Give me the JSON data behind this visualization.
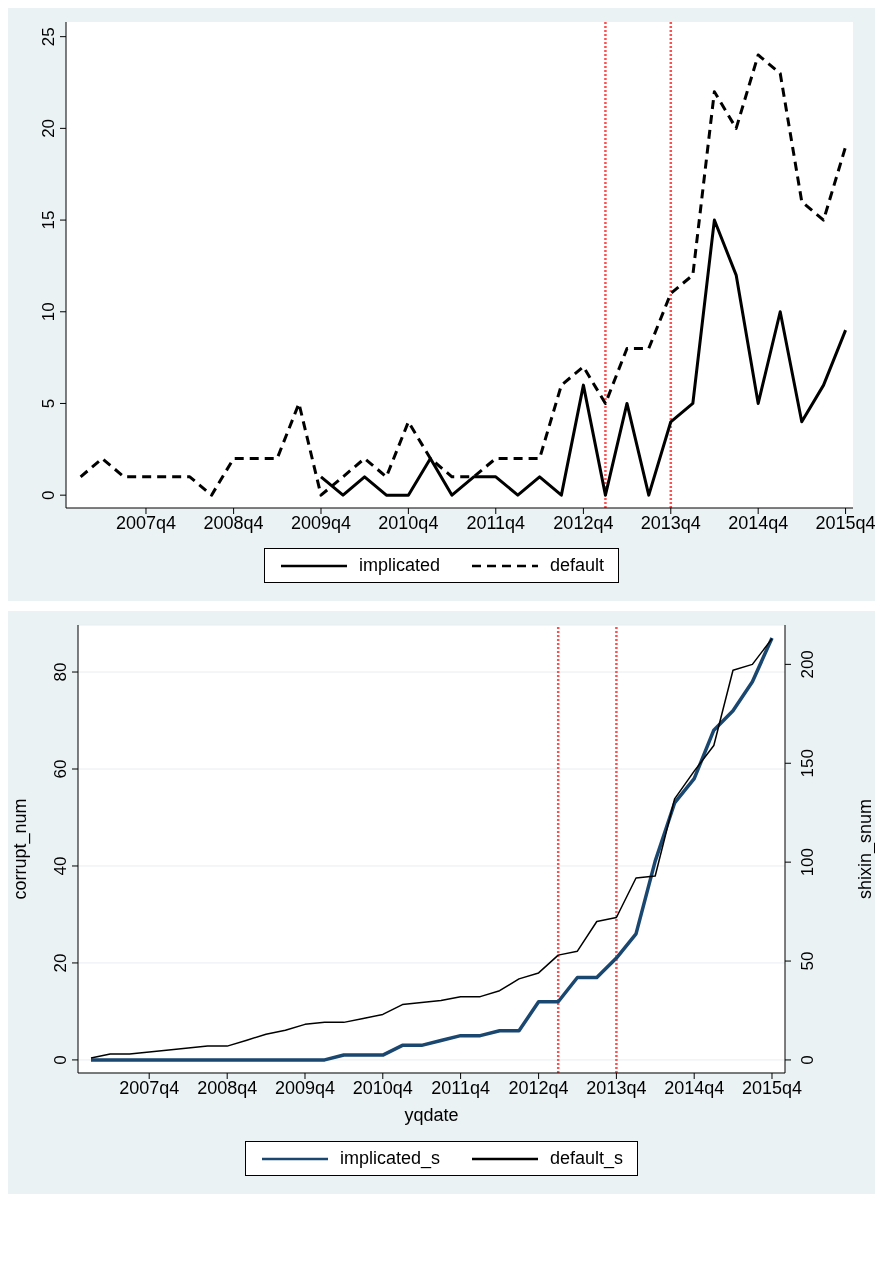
{
  "chart_data": [
    {
      "type": "line",
      "x": [
        "2007-01",
        "2007-04",
        "2007-07",
        "2007-10",
        "2008-01",
        "2008-04",
        "2008-07",
        "2008-10",
        "2009-01",
        "2009-04",
        "2009-07",
        "2009-10",
        "2010-01",
        "2010-04",
        "2010-07",
        "2010-10",
        "2011-01",
        "2011-04",
        "2011-07",
        "2011-10",
        "2012-01",
        "2012-04",
        "2012-07",
        "2012-10",
        "2013-01",
        "2013-04",
        "2013-07",
        "2013-10",
        "2014-01",
        "2014-04",
        "2014-07",
        "2014-10",
        "2015-01",
        "2015-04",
        "2015-07",
        "2015-10"
      ],
      "series": [
        {
          "name": "implicated",
          "color": "#000000",
          "line_style": "solid",
          "values": [
            null,
            null,
            null,
            null,
            null,
            null,
            null,
            null,
            null,
            null,
            null,
            1,
            0,
            1,
            0,
            0,
            2,
            0,
            1,
            1,
            0,
            1,
            0,
            6,
            0,
            5,
            0,
            4,
            5,
            15,
            12,
            5,
            10,
            4,
            6,
            9
          ]
        },
        {
          "name": "default",
          "color": "#000000",
          "line_style": "dashed",
          "values": [
            1,
            2,
            1,
            1,
            1,
            1,
            0,
            2,
            2,
            2,
            5,
            0,
            1,
            2,
            1,
            4,
            2,
            1,
            1,
            2,
            2,
            2,
            6,
            7,
            5,
            8,
            8,
            11,
            12,
            22,
            20,
            24,
            23,
            16,
            15,
            19
          ]
        }
      ],
      "xlim": [
        "2006-11-01",
        "2015-11-01"
      ],
      "xticks": [
        {
          "value": "2007-10",
          "label": "2007q4"
        },
        {
          "value": "2008-10",
          "label": "2008q4"
        },
        {
          "value": "2009-10",
          "label": "2009q4"
        },
        {
          "value": "2010-10",
          "label": "2010q4"
        },
        {
          "value": "2011-10",
          "label": "2011q4"
        },
        {
          "value": "2012-10",
          "label": "2012q4"
        },
        {
          "value": "2013-10",
          "label": "2013q4"
        },
        {
          "value": "2014-10",
          "label": "2014q4"
        },
        {
          "value": "2015-10",
          "label": "2015q4"
        }
      ],
      "ylim": [
        -0.7,
        25.8
      ],
      "yticks": [
        0,
        5,
        10,
        15,
        20,
        25
      ],
      "ref_lines": [
        {
          "axis": "x",
          "value": "2013-01",
          "color": "#ff5050",
          "line_style": "dashed"
        },
        {
          "axis": "x",
          "value": "2013-10",
          "color": "#ff5050",
          "line_style": "dashed"
        }
      ],
      "grid": false,
      "legend": "bottom",
      "marker": "none"
    },
    {
      "type": "line",
      "x": [
        "2007-01",
        "2007-04",
        "2007-07",
        "2007-10",
        "2008-01",
        "2008-04",
        "2008-07",
        "2008-10",
        "2009-01",
        "2009-04",
        "2009-07",
        "2009-10",
        "2010-01",
        "2010-04",
        "2010-07",
        "2010-10",
        "2011-01",
        "2011-04",
        "2011-07",
        "2011-10",
        "2012-01",
        "2012-04",
        "2012-07",
        "2012-10",
        "2013-01",
        "2013-04",
        "2013-07",
        "2013-10",
        "2014-01",
        "2014-04",
        "2014-07",
        "2014-10",
        "2015-01",
        "2015-04",
        "2015-07",
        "2015-10"
      ],
      "series": [
        {
          "name": "implicated_s",
          "color": "#1a476f",
          "line_style": "solid",
          "values": [
            0,
            0,
            0,
            0,
            0,
            0,
            0,
            0,
            0,
            0,
            0,
            0,
            0,
            1,
            1,
            1,
            3,
            3,
            4,
            5,
            5,
            6,
            6,
            12,
            12,
            17,
            17,
            21,
            26,
            41,
            53,
            58,
            68,
            72,
            78,
            87
          ]
        },
        {
          "name": "default_s",
          "color": "#000000",
          "line_style": "solid",
          "axis": "y2",
          "values": [
            1,
            3,
            3,
            4,
            5,
            6,
            7,
            7,
            10,
            13,
            15,
            18,
            19,
            19,
            21,
            23,
            28,
            29,
            30,
            32,
            32,
            35,
            41,
            44,
            53,
            55,
            70,
            72,
            92,
            93,
            132,
            146,
            159,
            197,
            200,
            213
          ]
        }
      ],
      "xlabel": "yqdate",
      "ylabel": "corrupt_num",
      "y2label": "shixin_snum",
      "xlim": [
        "2006-11-01",
        "2015-12-01"
      ],
      "xticks": [
        {
          "value": "2007-10",
          "label": "2007q4"
        },
        {
          "value": "2008-10",
          "label": "2008q4"
        },
        {
          "value": "2009-10",
          "label": "2009q4"
        },
        {
          "value": "2010-10",
          "label": "2010q4"
        },
        {
          "value": "2011-10",
          "label": "2011q4"
        },
        {
          "value": "2012-10",
          "label": "2012q4"
        },
        {
          "value": "2013-10",
          "label": "2013q4"
        },
        {
          "value": "2014-10",
          "label": "2014q4"
        },
        {
          "value": "2015-10",
          "label": "2015q4"
        }
      ],
      "ylim": [
        -2.7,
        89.7
      ],
      "yticks": [
        0,
        20,
        40,
        60,
        80
      ],
      "y2lim": [
        -6.6,
        219.9
      ],
      "y2ticks": [
        0,
        50,
        100,
        150,
        200
      ],
      "ref_lines": [
        {
          "axis": "x",
          "value": "2013-01",
          "color": "#ff5050",
          "line_style": "dashed"
        },
        {
          "axis": "x",
          "value": "2013-10",
          "color": "#ff5050",
          "line_style": "dashed"
        }
      ],
      "grid": "y",
      "legend": "bottom",
      "marker": "none"
    }
  ]
}
